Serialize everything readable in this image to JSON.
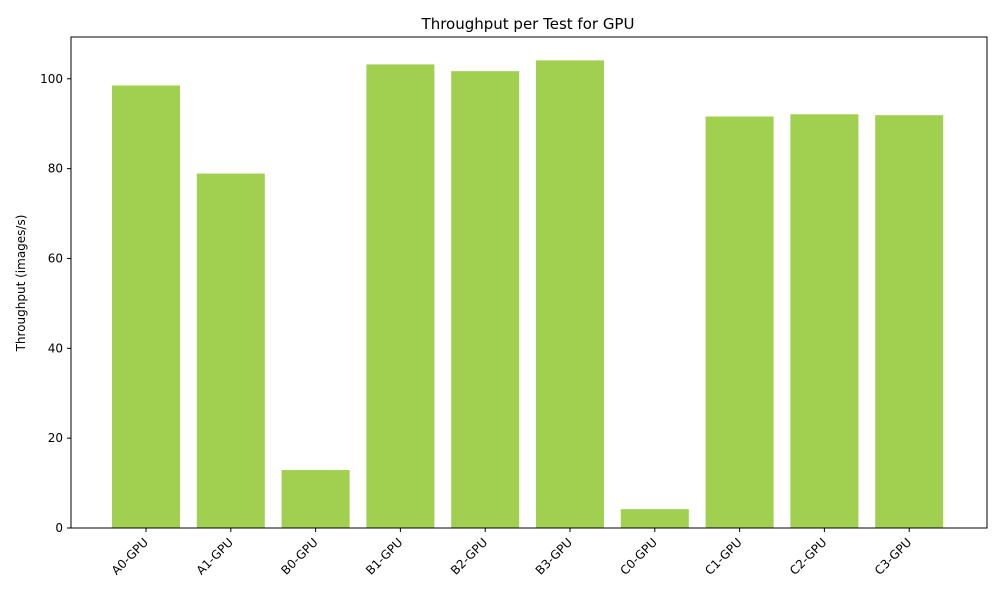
{
  "chart_data": {
    "type": "bar",
    "title": "Throughput per Test for GPU",
    "xlabel": "",
    "ylabel": "Throughput (images/s)",
    "categories": [
      "A0-GPU",
      "A1-GPU",
      "B0-GPU",
      "B1-GPU",
      "B2-GPU",
      "B3-GPU",
      "C0-GPU",
      "C1-GPU",
      "C2-GPU",
      "C3-GPU"
    ],
    "values": [
      98.5,
      78.9,
      12.9,
      103.2,
      101.7,
      104.1,
      4.2,
      91.6,
      92.1,
      91.9
    ],
    "ylim": [
      0,
      109.3
    ],
    "yticks": [
      0,
      20,
      40,
      60,
      80,
      100
    ],
    "bar_color": "#a1cf4f",
    "grid": false,
    "x_tick_rotation": "45"
  }
}
